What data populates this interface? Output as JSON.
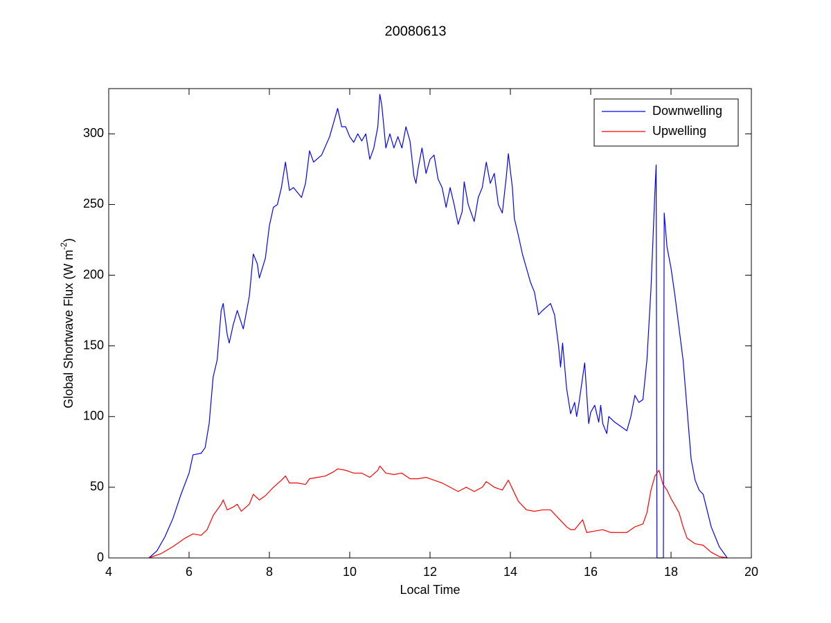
{
  "chart_data": {
    "type": "line",
    "title": "20080613",
    "xlabel": "Local Time",
    "ylabel": {
      "text": "Global Shortwave Flux (W m",
      "sup": "-2",
      "end": ")"
    },
    "xlim": [
      4,
      20
    ],
    "xticks": [
      4,
      6,
      8,
      10,
      12,
      14,
      16,
      18,
      20
    ],
    "ylim": [
      0,
      332
    ],
    "yticks": [
      0,
      50,
      100,
      150,
      200,
      250,
      300
    ],
    "grid": false,
    "legend": "top-right",
    "series": [
      {
        "name": "Downwelling",
        "color": "#0000ff",
        "x": [
          5.0,
          5.2,
          5.4,
          5.6,
          5.8,
          6.0,
          6.1,
          6.3,
          6.4,
          6.5,
          6.6,
          6.7,
          6.8,
          6.85,
          6.95,
          7.0,
          7.1,
          7.2,
          7.35,
          7.5,
          7.6,
          7.7,
          7.75,
          7.9,
          8.0,
          8.1,
          8.2,
          8.3,
          8.4,
          8.5,
          8.6,
          8.8,
          8.9,
          9.0,
          9.1,
          9.3,
          9.5,
          9.7,
          9.8,
          9.9,
          10.0,
          10.1,
          10.2,
          10.3,
          10.4,
          10.5,
          10.6,
          10.7,
          10.75,
          10.8,
          10.9,
          11.0,
          11.1,
          11.2,
          11.3,
          11.4,
          11.5,
          11.6,
          11.65,
          11.7,
          11.8,
          11.9,
          12.0,
          12.1,
          12.2,
          12.3,
          12.4,
          12.5,
          12.6,
          12.7,
          12.8,
          12.85,
          12.95,
          13.1,
          13.2,
          13.3,
          13.4,
          13.5,
          13.6,
          13.7,
          13.8,
          13.9,
          13.95,
          14.05,
          14.1,
          14.2,
          14.3,
          14.5,
          14.6,
          14.7,
          14.8,
          15.0,
          15.1,
          15.2,
          15.25,
          15.3,
          15.4,
          15.5,
          15.6,
          15.65,
          15.7,
          15.8,
          15.85,
          15.95,
          16.0,
          16.1,
          16.2,
          16.25,
          16.3,
          16.4,
          16.45,
          16.6,
          16.8,
          16.9,
          17.0,
          17.1,
          17.2,
          17.3,
          17.4,
          17.5,
          17.6,
          17.63,
          17.65,
          17.81,
          17.83,
          17.9,
          18.0,
          18.1,
          18.3,
          18.4,
          18.5,
          18.6,
          18.7,
          18.8,
          19.0,
          19.2,
          19.4
        ],
        "values": [
          0,
          5,
          15,
          28,
          45,
          60,
          73,
          74,
          78,
          95,
          128,
          140,
          175,
          180,
          158,
          152,
          165,
          175,
          162,
          185,
          215,
          208,
          198,
          212,
          235,
          248,
          250,
          262,
          280,
          260,
          262,
          255,
          265,
          288,
          280,
          285,
          298,
          318,
          305,
          305,
          298,
          294,
          300,
          295,
          300,
          282,
          290,
          305,
          328,
          320,
          290,
          300,
          290,
          298,
          290,
          305,
          295,
          270,
          265,
          275,
          290,
          272,
          282,
          285,
          268,
          262,
          248,
          262,
          250,
          236,
          245,
          266,
          250,
          238,
          255,
          262,
          280,
          265,
          272,
          250,
          244,
          270,
          286,
          262,
          240,
          228,
          215,
          195,
          188,
          172,
          175,
          180,
          172,
          150,
          135,
          152,
          120,
          102,
          110,
          100,
          108,
          128,
          138,
          95,
          103,
          108,
          96,
          108,
          95,
          88,
          100,
          96,
          92,
          90,
          100,
          115,
          110,
          112,
          140,
          190,
          260,
          278,
          0,
          0,
          244,
          220,
          205,
          185,
          140,
          105,
          70,
          55,
          48,
          45,
          22,
          8,
          0
        ]
      },
      {
        "name": "Upwelling",
        "color": "#ff0000",
        "x": [
          5.0,
          5.3,
          5.6,
          5.9,
          6.1,
          6.3,
          6.45,
          6.6,
          6.8,
          6.85,
          6.95,
          7.1,
          7.2,
          7.3,
          7.5,
          7.6,
          7.75,
          7.9,
          8.1,
          8.3,
          8.4,
          8.5,
          8.7,
          8.9,
          9.0,
          9.2,
          9.4,
          9.6,
          9.7,
          9.9,
          10.1,
          10.3,
          10.5,
          10.7,
          10.75,
          10.9,
          11.1,
          11.3,
          11.5,
          11.7,
          11.9,
          12.1,
          12.3,
          12.5,
          12.7,
          12.9,
          13.1,
          13.3,
          13.4,
          13.6,
          13.8,
          13.95,
          14.1,
          14.2,
          14.4,
          14.6,
          14.8,
          15.0,
          15.2,
          15.4,
          15.5,
          15.6,
          15.8,
          15.9,
          16.1,
          16.3,
          16.5,
          16.7,
          16.9,
          17.1,
          17.3,
          17.4,
          17.5,
          17.6,
          17.7,
          17.8,
          17.9,
          18.0,
          18.2,
          18.3,
          18.4,
          18.6,
          18.8,
          19.0,
          19.2,
          19.4
        ],
        "values": [
          0,
          3,
          8,
          14,
          17,
          16,
          20,
          30,
          38,
          41,
          34,
          36,
          38,
          33,
          38,
          45,
          41,
          44,
          50,
          55,
          58,
          53,
          53,
          52,
          56,
          57,
          58,
          61,
          63,
          62,
          60,
          60,
          57,
          62,
          65,
          60,
          59,
          60,
          56,
          56,
          57,
          55,
          53,
          50,
          47,
          50,
          47,
          50,
          54,
          50,
          48,
          55,
          46,
          40,
          34,
          33,
          34,
          34,
          28,
          22,
          20,
          20,
          27,
          18,
          19,
          20,
          18,
          18,
          18,
          22,
          24,
          32,
          48,
          58,
          62,
          52,
          48,
          42,
          32,
          22,
          14,
          10,
          9,
          4,
          1,
          0
        ]
      }
    ]
  }
}
